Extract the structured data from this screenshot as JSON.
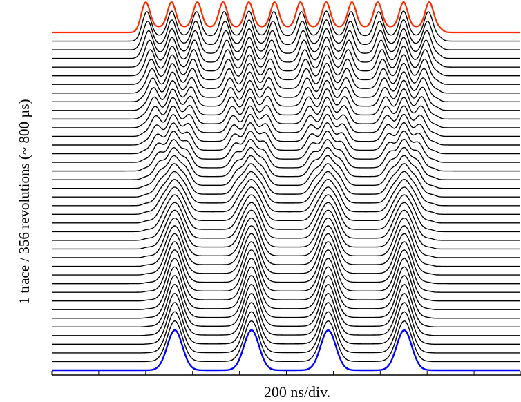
{
  "chart_data": {
    "type": "line",
    "title": "",
    "xlabel": "200 ns/div.",
    "ylabel": "1 trace / 356 revolutions (~ 800 µs)",
    "trace_count": 40,
    "grid": false,
    "legend": "none",
    "x_divisions": 10,
    "initial_bunches": 12,
    "final_bunches": 4,
    "series_colors": {
      "first_trace": "#ff2a00",
      "last_trace": "#0000ff",
      "intermediate": "#000000"
    }
  }
}
